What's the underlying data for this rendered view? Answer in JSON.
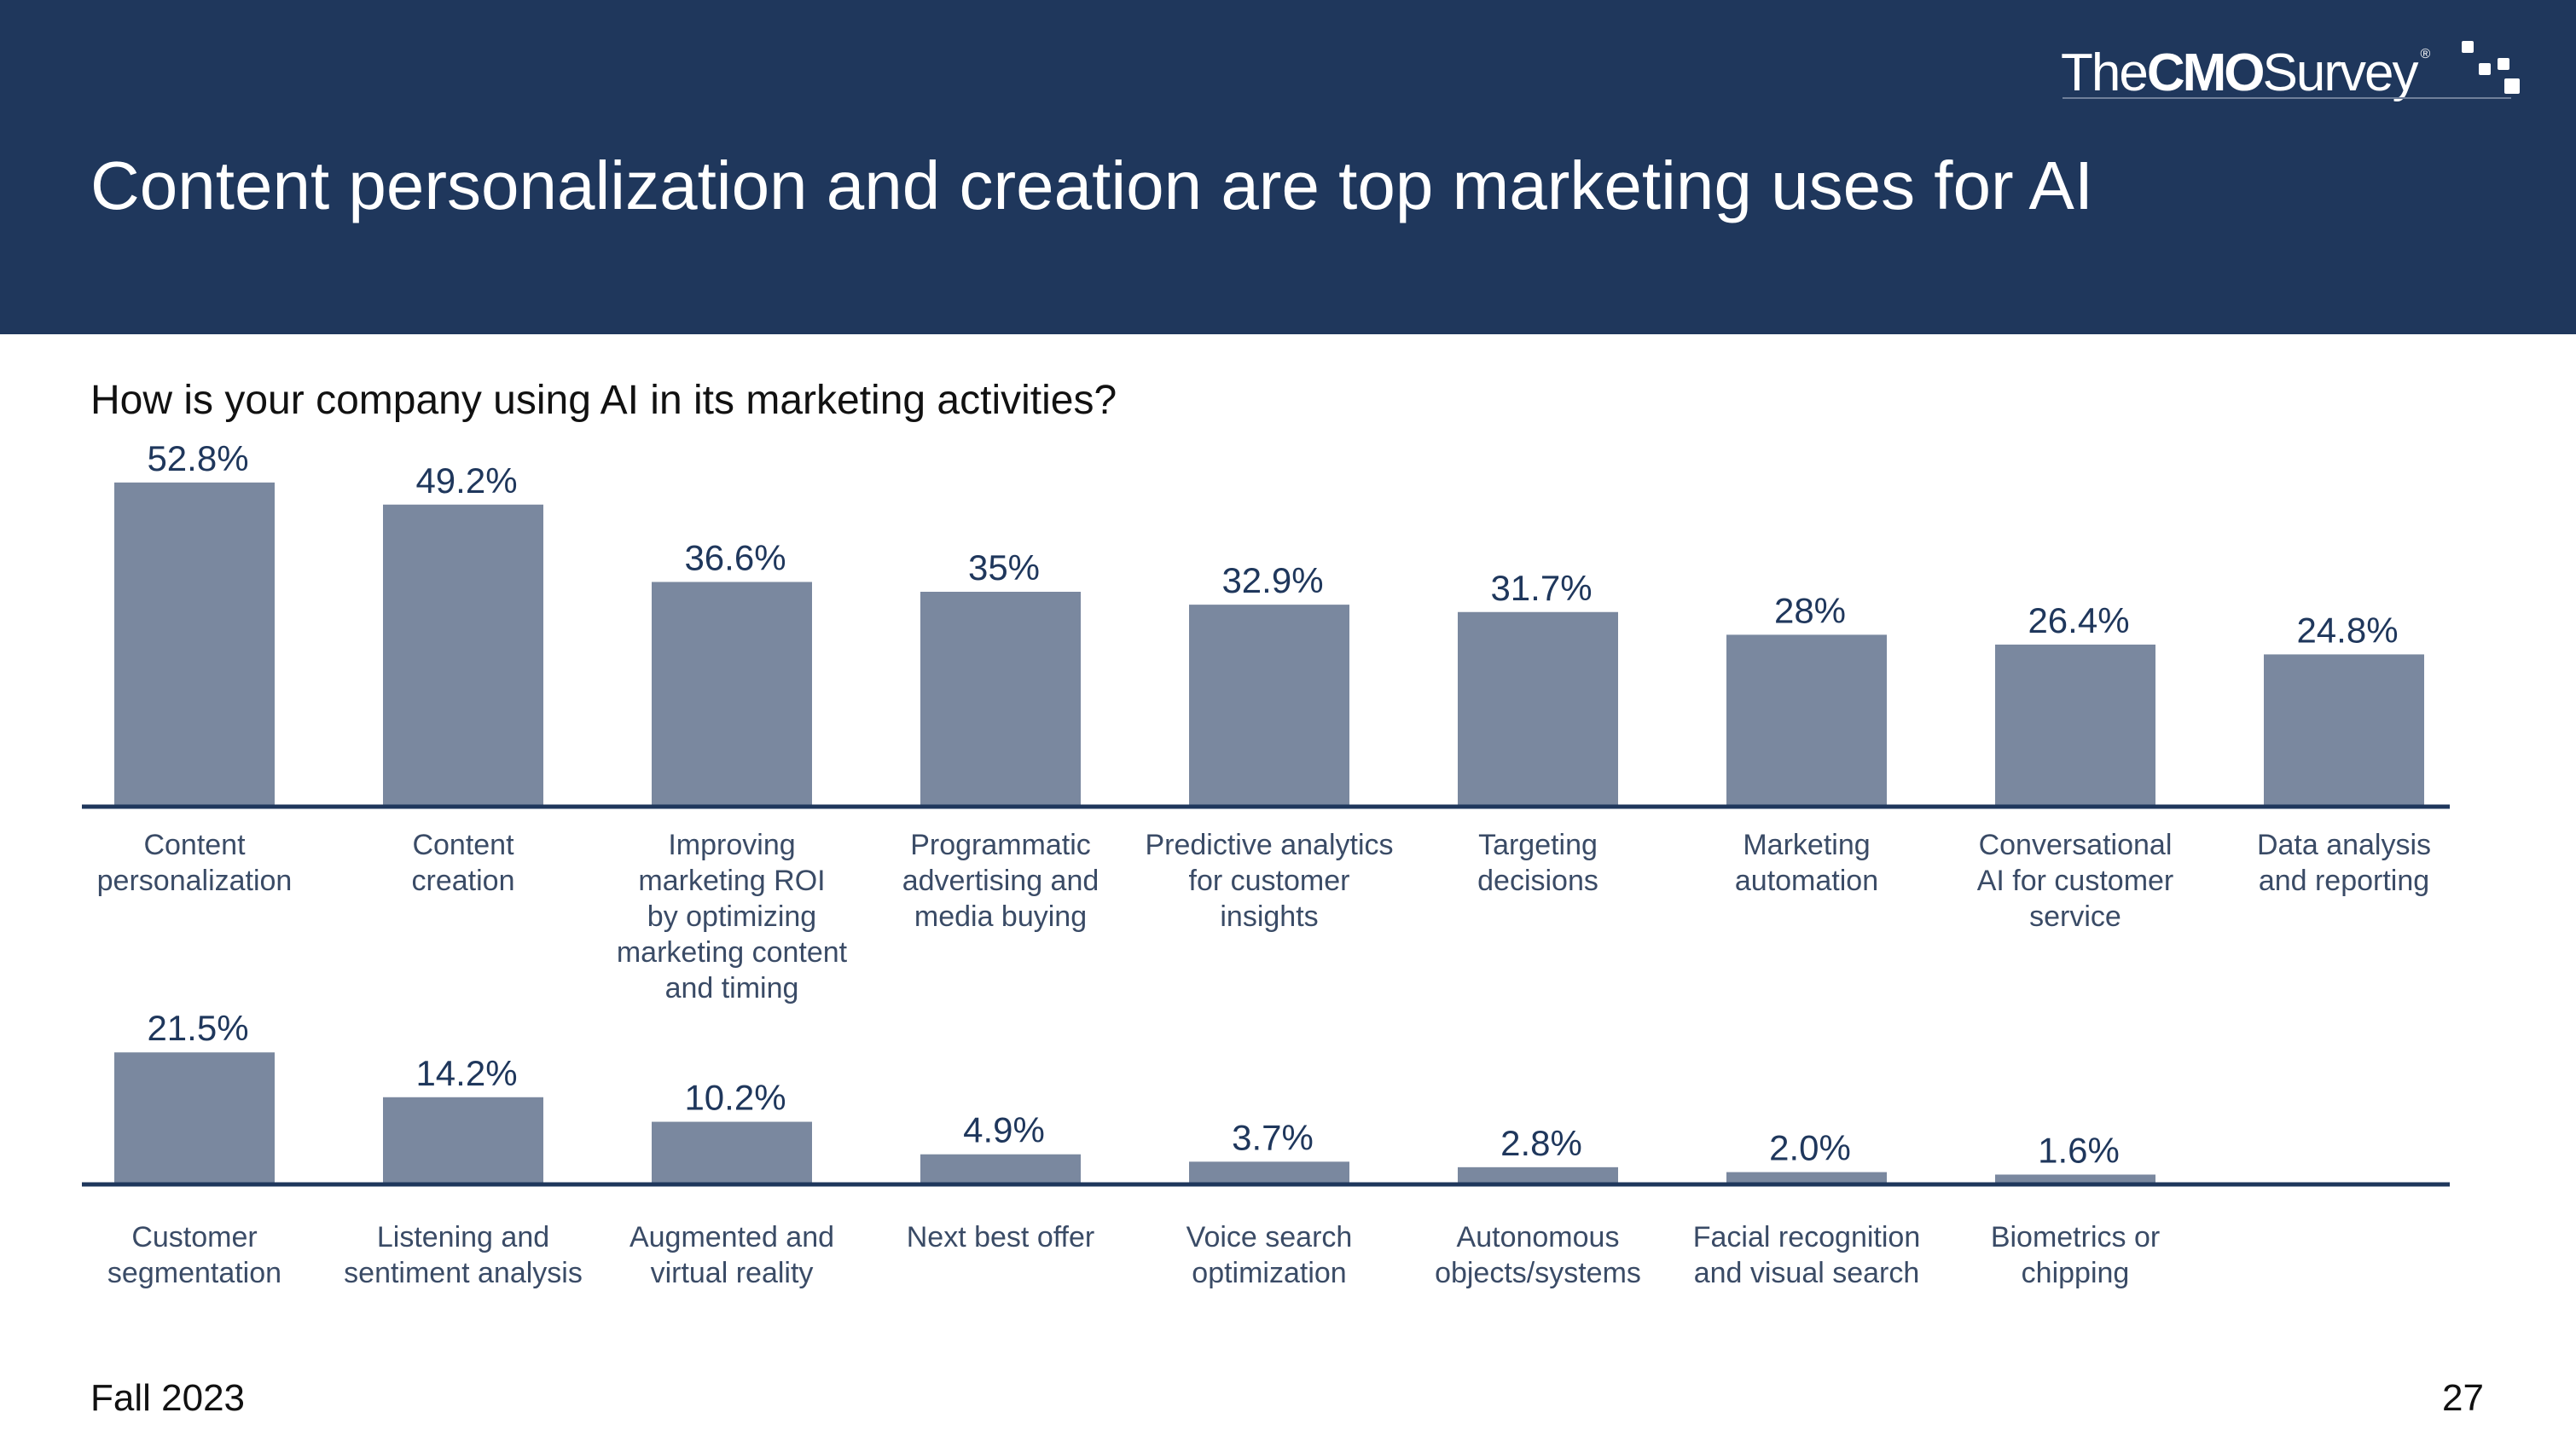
{
  "title": "Content personalization and creation are top marketing uses for AI",
  "logo": {
    "the": "The",
    "cmo": "CMO",
    "survey": "Survey",
    "reg": "®"
  },
  "question": "How is your company using AI in its marketing activities?",
  "footer": {
    "date": "Fall 2023",
    "page_number": "27"
  },
  "colors": {
    "header_bg": "#1f375c",
    "bar": "#7a889f",
    "baseline": "#1f375c",
    "value_label": "#1f375c",
    "category_label": "#3a4b66"
  },
  "chart_data": [
    {
      "type": "bar",
      "categories": [
        [
          "Content",
          "personalization"
        ],
        [
          "Content",
          "creation"
        ],
        [
          "Improving",
          "marketing ROI",
          "by optimizing",
          "marketing content",
          "and timing"
        ],
        [
          "Programmatic",
          "advertising and",
          "media buying"
        ],
        [
          "Predictive analytics",
          "for customer",
          "insights"
        ],
        [
          "Targeting",
          "decisions"
        ],
        [
          "Marketing",
          "automation"
        ],
        [
          "Conversational",
          "AI for customer",
          "service"
        ],
        [
          "Data analysis",
          "and reporting"
        ]
      ],
      "values": [
        52.8,
        49.2,
        36.6,
        35,
        32.9,
        31.7,
        28,
        26.4,
        24.8
      ],
      "labels": [
        "52.8%",
        "49.2%",
        "36.6%",
        "35%",
        "32.9%",
        "31.7%",
        "28%",
        "26.4%",
        "24.8%"
      ],
      "ylim": [
        0,
        100
      ],
      "unit": "%"
    },
    {
      "type": "bar",
      "categories": [
        [
          "Customer",
          "segmentation"
        ],
        [
          "Listening and",
          "sentiment analysis"
        ],
        [
          "Augmented and",
          "virtual reality"
        ],
        [
          "Next best offer"
        ],
        [
          "Voice search",
          "optimization"
        ],
        [
          "Autonomous",
          "objects/systems"
        ],
        [
          "Facial recognition",
          "and visual search"
        ],
        [
          "Biometrics or",
          "chipping"
        ]
      ],
      "values": [
        21.5,
        14.2,
        10.2,
        4.9,
        3.7,
        2.8,
        2.0,
        1.6
      ],
      "labels": [
        "21.5%",
        "14.2%",
        "10.2%",
        "4.9%",
        "3.7%",
        "2.8%",
        "2.0%",
        "1.6%"
      ],
      "ylim": [
        0,
        100
      ],
      "unit": "%"
    }
  ]
}
